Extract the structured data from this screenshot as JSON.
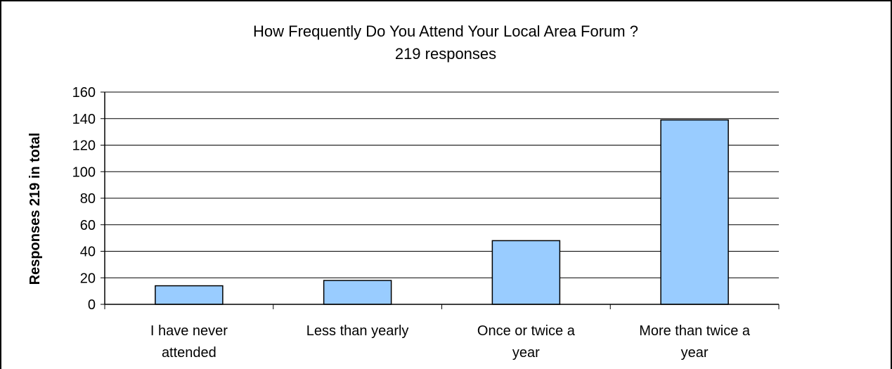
{
  "chart_data": {
    "type": "bar",
    "title": "How Frequently Do You Attend Your Local Area Forum ?",
    "subtitle": "219 responses",
    "xlabel": "",
    "ylabel": "Responses 219 in total",
    "categories": [
      [
        "I have never",
        "attended"
      ],
      [
        "Less than yearly"
      ],
      [
        "Once or twice a",
        "year"
      ],
      [
        "More than twice a",
        "year"
      ]
    ],
    "values": [
      14,
      18,
      48,
      139
    ],
    "ylim": [
      0,
      160
    ],
    "yticks": [
      0,
      20,
      40,
      60,
      80,
      100,
      120,
      140,
      160
    ],
    "grid": true,
    "legend": "none",
    "colors": {
      "bar_fill": "#99ccff",
      "bar_stroke": "#000000",
      "grid": "#000000",
      "axis": "#000000",
      "frame": "#000000"
    }
  }
}
